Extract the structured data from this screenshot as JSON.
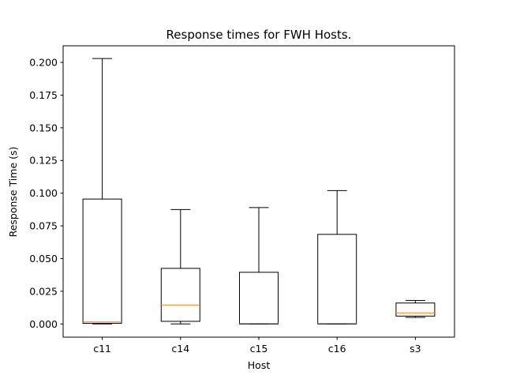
{
  "chart_data": {
    "type": "box",
    "title": "Response times for FWH Hosts.",
    "xlabel": "Host",
    "ylabel": "Response Time (s)",
    "ylim": [
      -0.0101,
      0.2127
    ],
    "yticks": [
      "0.000",
      "0.025",
      "0.050",
      "0.075",
      "0.100",
      "0.125",
      "0.150",
      "0.175",
      "0.200"
    ],
    "grid": false,
    "categories": [
      "c11",
      "c14",
      "c15",
      "c16",
      "s3"
    ],
    "boxes": [
      {
        "name": "c11",
        "whisker_low": 0.0,
        "q1": 0.0005,
        "median": 0.0015,
        "q3": 0.0955,
        "whisker_high": 0.203
      },
      {
        "name": "c14",
        "whisker_low": 0.0,
        "q1": 0.002,
        "median": 0.0145,
        "q3": 0.0425,
        "whisker_high": 0.0875
      },
      {
        "name": "c15",
        "whisker_low": 0.0,
        "q1": 0.0,
        "median": 0.0005,
        "q3": 0.0395,
        "whisker_high": 0.089
      },
      {
        "name": "c16",
        "whisker_low": 0.0,
        "q1": 0.0,
        "median": 0.0005,
        "q3": 0.0685,
        "whisker_high": 0.102
      },
      {
        "name": "s3",
        "whisker_low": 0.005,
        "q1": 0.006,
        "median": 0.0085,
        "q3": 0.016,
        "whisker_high": 0.018
      }
    ],
    "colors": {
      "box": "#000000",
      "median": "#ff7f0e"
    }
  }
}
